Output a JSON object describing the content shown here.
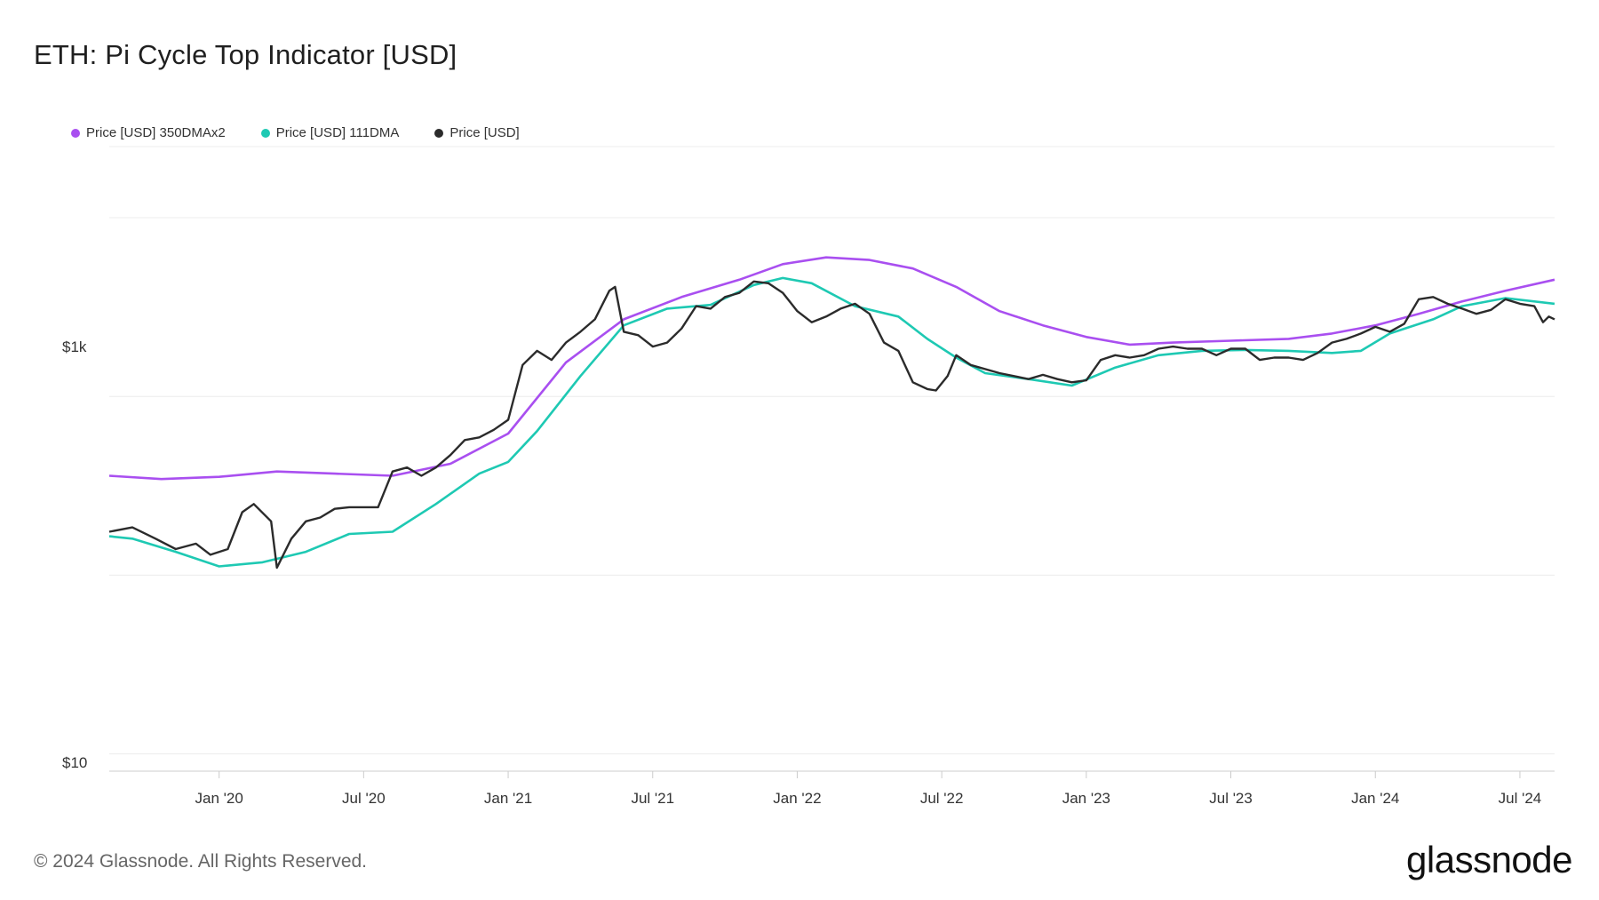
{
  "title": "ETH: Pi Cycle Top Indicator [USD]",
  "legend": [
    {
      "label": "Price [USD] 350DMAx2",
      "color": "#a94ff0"
    },
    {
      "label": "Price [USD] 111DMA",
      "color": "#1ec9b3"
    },
    {
      "label": "Price [USD]",
      "color": "#2b2b2b"
    }
  ],
  "footer": "© 2024 Glassnode. All Rights Reserved.",
  "logo": "glassnode",
  "chart_data": {
    "type": "line",
    "title": "ETH: Pi Cycle Top Indicator [USD]",
    "yscale": "log",
    "ylim": [
      8,
      25000
    ],
    "y_tick_labels": [
      "$1k",
      "$10"
    ],
    "x_tick_labels": [
      "Jan '20",
      "Jul '20",
      "Jan '21",
      "Jul '21",
      "Jan '22",
      "Jul '22",
      "Jan '23",
      "Jul '23",
      "Jan '24",
      "Jul '24"
    ],
    "x_tick_pos": [
      2020.0,
      2020.5,
      2021.0,
      2021.5,
      2022.0,
      2022.5,
      2023.0,
      2023.5,
      2024.0,
      2024.5
    ],
    "xlim": [
      2019.62,
      2024.62
    ],
    "series": [
      {
        "name": "Price [USD] 350DMAx2",
        "color": "#a94ff0",
        "x": [
          2019.62,
          2019.8,
          2020.0,
          2020.2,
          2020.4,
          2020.6,
          2020.8,
          2021.0,
          2021.2,
          2021.4,
          2021.6,
          2021.8,
          2021.95,
          2022.1,
          2022.25,
          2022.4,
          2022.55,
          2022.7,
          2022.85,
          2023.0,
          2023.15,
          2023.3,
          2023.5,
          2023.7,
          2023.85,
          2024.0,
          2024.15,
          2024.3,
          2024.45,
          2024.62
        ],
        "values": [
          360,
          345,
          355,
          380,
          370,
          360,
          420,
          620,
          1550,
          2700,
          3600,
          4500,
          5500,
          6000,
          5800,
          5200,
          4100,
          3000,
          2500,
          2150,
          1950,
          2000,
          2050,
          2100,
          2250,
          2500,
          2900,
          3400,
          3900,
          4500
        ]
      },
      {
        "name": "Price [USD] 111DMA",
        "color": "#1ec9b3",
        "x": [
          2019.62,
          2019.7,
          2019.85,
          2020.0,
          2020.15,
          2020.3,
          2020.45,
          2020.6,
          2020.75,
          2020.9,
          2021.0,
          2021.1,
          2021.25,
          2021.4,
          2021.55,
          2021.7,
          2021.85,
          2021.95,
          2022.05,
          2022.2,
          2022.35,
          2022.45,
          2022.55,
          2022.65,
          2022.8,
          2022.95,
          2023.1,
          2023.25,
          2023.4,
          2023.55,
          2023.7,
          2023.85,
          2023.95,
          2024.05,
          2024.2,
          2024.3,
          2024.45,
          2024.62
        ],
        "values": [
          165,
          160,
          135,
          112,
          118,
          135,
          170,
          175,
          250,
          370,
          430,
          640,
          1300,
          2500,
          3100,
          3250,
          4200,
          4600,
          4300,
          3200,
          2800,
          2100,
          1650,
          1350,
          1250,
          1150,
          1450,
          1700,
          1800,
          1820,
          1800,
          1750,
          1800,
          2250,
          2700,
          3200,
          3550,
          3300
        ]
      },
      {
        "name": "Price [USD]",
        "color": "#2b2b2b",
        "x": [
          2019.62,
          2019.7,
          2019.78,
          2019.85,
          2019.92,
          2019.97,
          2020.03,
          2020.08,
          2020.12,
          2020.18,
          2020.2,
          2020.25,
          2020.3,
          2020.35,
          2020.4,
          2020.45,
          2020.55,
          2020.6,
          2020.65,
          2020.7,
          2020.75,
          2020.8,
          2020.85,
          2020.9,
          2020.95,
          2021.0,
          2021.05,
          2021.1,
          2021.15,
          2021.2,
          2021.25,
          2021.3,
          2021.35,
          2021.37,
          2021.4,
          2021.45,
          2021.5,
          2021.55,
          2021.6,
          2021.65,
          2021.7,
          2021.75,
          2021.8,
          2021.85,
          2021.9,
          2021.95,
          2022.0,
          2022.05,
          2022.1,
          2022.15,
          2022.2,
          2022.25,
          2022.3,
          2022.35,
          2022.4,
          2022.45,
          2022.48,
          2022.52,
          2022.55,
          2022.6,
          2022.7,
          2022.75,
          2022.8,
          2022.85,
          2022.9,
          2022.95,
          2023.0,
          2023.05,
          2023.1,
          2023.15,
          2023.2,
          2023.25,
          2023.3,
          2023.35,
          2023.4,
          2023.45,
          2023.5,
          2023.55,
          2023.6,
          2023.65,
          2023.7,
          2023.75,
          2023.8,
          2023.85,
          2023.9,
          2023.95,
          2024.0,
          2024.05,
          2024.1,
          2024.15,
          2024.2,
          2024.25,
          2024.3,
          2024.35,
          2024.4,
          2024.45,
          2024.5,
          2024.55,
          2024.58,
          2024.6,
          2024.62
        ],
        "values": [
          175,
          185,
          160,
          140,
          150,
          130,
          140,
          225,
          250,
          200,
          110,
          160,
          200,
          210,
          235,
          240,
          240,
          380,
          400,
          360,
          400,
          470,
          570,
          590,
          650,
          740,
          1500,
          1800,
          1600,
          2000,
          2300,
          2700,
          3900,
          4100,
          2300,
          2200,
          1900,
          2000,
          2400,
          3200,
          3100,
          3600,
          3800,
          4400,
          4300,
          3800,
          3000,
          2600,
          2800,
          3100,
          3300,
          2900,
          2000,
          1800,
          1200,
          1100,
          1080,
          1300,
          1700,
          1500,
          1350,
          1300,
          1250,
          1320,
          1250,
          1200,
          1230,
          1600,
          1700,
          1650,
          1700,
          1850,
          1900,
          1850,
          1850,
          1700,
          1850,
          1850,
          1600,
          1650,
          1650,
          1600,
          1750,
          2000,
          2100,
          2250,
          2450,
          2300,
          2550,
          3500,
          3600,
          3300,
          3100,
          2900,
          3050,
          3500,
          3300,
          3200,
          2600,
          2800,
          2700
        ]
      }
    ]
  }
}
